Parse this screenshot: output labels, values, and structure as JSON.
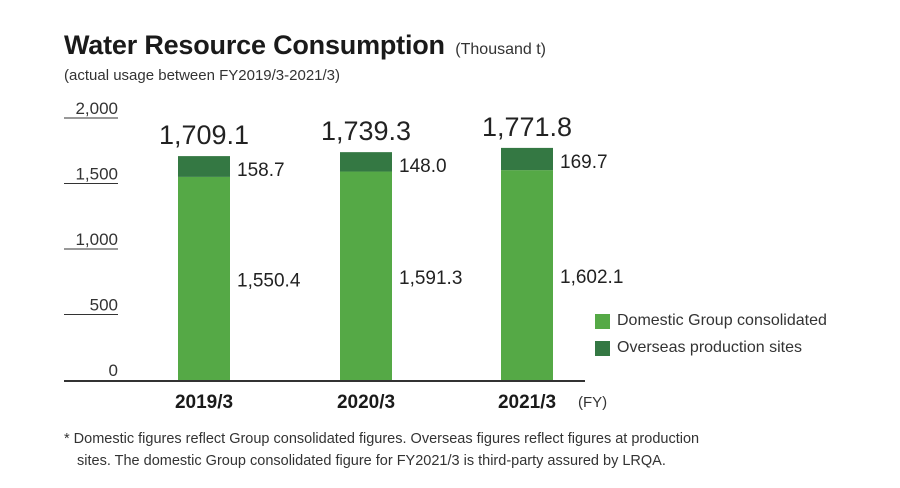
{
  "title": "Water Resource Consumption",
  "unit": "(Thousand t)",
  "subtitle": "(actual usage between FY2019/3-2021/3)",
  "colors": {
    "domestic": "#55a946",
    "overseas": "#347843",
    "axis": "#333333"
  },
  "chart_data": {
    "type": "bar",
    "stacked": true,
    "title": "Water Resource Consumption",
    "ylabel": "Thousand t",
    "xlabel": "(FY)",
    "ylim": [
      0,
      2000
    ],
    "yticks": [
      {
        "value": 0,
        "label": "0"
      },
      {
        "value": 500,
        "label": "500"
      },
      {
        "value": 1000,
        "label": "1,000"
      },
      {
        "value": 1500,
        "label": "1,500"
      },
      {
        "value": 2000,
        "label": "2,000"
      }
    ],
    "categories": [
      "2019/3",
      "2020/3",
      "2021/3"
    ],
    "series": [
      {
        "name": "Domestic Group consolidated",
        "values": [
          1550.4,
          1591.3,
          1602.1
        ],
        "labels": [
          "1,550.4",
          "1,591.3",
          "1,602.1"
        ]
      },
      {
        "name": "Overseas production sites",
        "values": [
          158.7,
          148.0,
          169.7
        ],
        "labels": [
          "158.7",
          "148.0",
          "169.7"
        ]
      }
    ],
    "totals": [
      1709.1,
      1739.3,
      1771.8
    ],
    "total_labels": [
      "1,709.1",
      "1,739.3",
      "1,771.8"
    ],
    "legend": [
      "Domestic Group consolidated",
      "Overseas production sites"
    ],
    "legend_position": "right"
  },
  "note": {
    "line1": "* Domestic figures reflect Group consolidated figures. Overseas figures reflect figures at production",
    "line2": "sites. The domestic Group consolidated figure for FY2021/3 is third-party assured by LRQA."
  }
}
